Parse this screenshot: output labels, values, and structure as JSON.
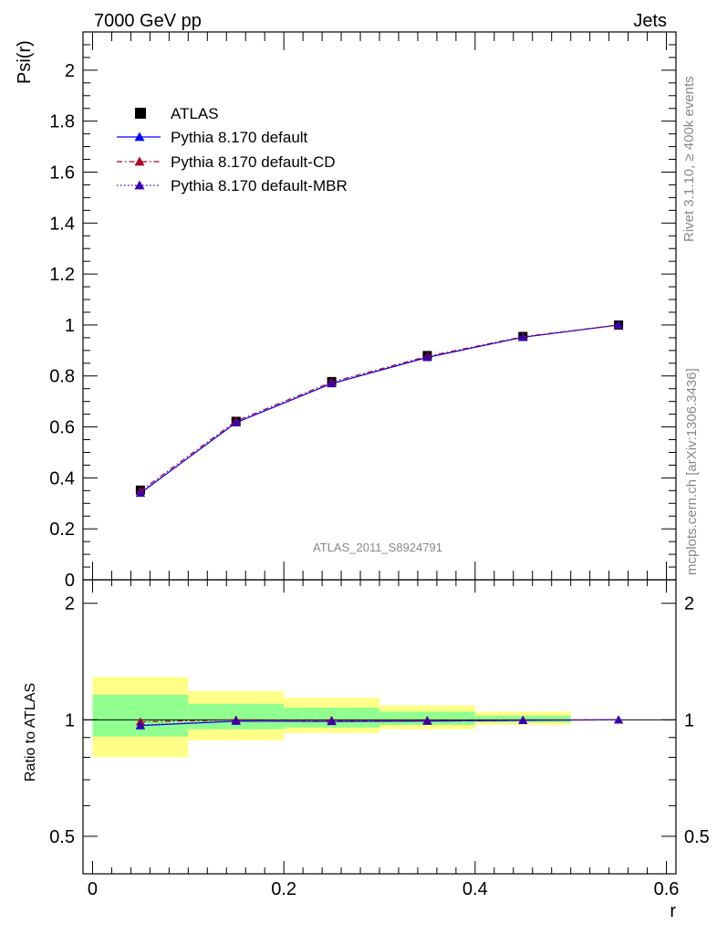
{
  "header": {
    "left_label": "7000 GeV pp",
    "right_label": "Jets"
  },
  "side_labels": {
    "rivet": "Rivet 3.1.10, ≥ 400k events",
    "mcplots": "mcplots.cern.ch [arXiv:1306.3436]"
  },
  "analysis_id": "ATLAS_2011_S8924791",
  "colors": {
    "data": "#000000",
    "default": "#0000ff",
    "cd": "#a8002a",
    "mbr": "#3a00b0",
    "band_outer": "#ffff88",
    "band_inner": "#90ff90"
  },
  "chart_data": [
    {
      "type": "line",
      "name": "main",
      "xlabel": "",
      "ylabel": "Psi(r)",
      "xlim": [
        -0.01,
        0.61
      ],
      "ylim": [
        0,
        2.15
      ],
      "yticks": [
        0,
        0.2,
        0.4,
        0.6,
        0.8,
        1,
        1.2,
        1.4,
        1.6,
        1.8,
        2
      ],
      "ytick_labels": [
        "0",
        "0.2",
        "0.4",
        "0.6",
        "0.8",
        "1",
        "1.2",
        "1.4",
        "1.6",
        "1.8",
        "2"
      ],
      "legend_position": "top-left",
      "x": [
        0.05,
        0.15,
        0.25,
        0.35,
        0.45,
        0.55
      ],
      "series": [
        {
          "name": "ATLAS",
          "marker": "square",
          "values": [
            0.352,
            0.622,
            0.778,
            0.88,
            0.955,
            1.0
          ]
        },
        {
          "name": "Pythia 8.170 default",
          "marker": "triangle",
          "line": "solid",
          "values": [
            0.34,
            0.617,
            0.77,
            0.873,
            0.952,
            1.0
          ]
        },
        {
          "name": "Pythia 8.170 default-CD",
          "marker": "triangle",
          "line": "dashdot",
          "values": [
            0.348,
            0.623,
            0.776,
            0.877,
            0.954,
            1.0
          ]
        },
        {
          "name": "Pythia 8.170 default-MBR",
          "marker": "triangle",
          "line": "dotted",
          "values": [
            0.341,
            0.617,
            0.771,
            0.873,
            0.952,
            1.0
          ]
        }
      ]
    },
    {
      "type": "line",
      "name": "ratio",
      "xlabel": "r",
      "ylabel": "Ratio to ATLAS",
      "xlim": [
        -0.01,
        0.61
      ],
      "ylim": [
        0.4,
        2.3
      ],
      "log_y": true,
      "xticks": [
        0,
        0.2,
        0.4,
        0.6
      ],
      "xtick_labels": [
        "0",
        "0.2",
        "0.4",
        "0.6"
      ],
      "yticks": [
        0.5,
        1,
        2
      ],
      "ytick_labels": [
        "0.5",
        "1",
        "2"
      ],
      "bands": {
        "bin_edges": [
          0,
          0.1,
          0.2,
          0.3,
          0.4,
          0.5
        ],
        "outer_low": [
          0.8,
          0.885,
          0.925,
          0.945,
          0.97
        ],
        "outer_high": [
          1.29,
          1.185,
          1.14,
          1.09,
          1.05
        ],
        "inner_low": [
          0.905,
          0.945,
          0.955,
          0.97,
          0.985
        ],
        "inner_high": [
          1.16,
          1.1,
          1.075,
          1.05,
          1.025
        ]
      },
      "x": [
        0.05,
        0.15,
        0.25,
        0.35,
        0.45,
        0.55
      ],
      "series": [
        {
          "name": "Pythia 8.170 default",
          "values": [
            0.966,
            0.992,
            0.99,
            0.992,
            0.997,
            1.0
          ]
        },
        {
          "name": "Pythia 8.170 default-CD",
          "values": [
            0.988,
            1.0,
            0.997,
            0.997,
            0.999,
            1.0
          ]
        },
        {
          "name": "Pythia 8.170 default-MBR",
          "values": [
            0.969,
            0.993,
            0.991,
            0.992,
            0.997,
            1.0
          ]
        }
      ]
    }
  ]
}
